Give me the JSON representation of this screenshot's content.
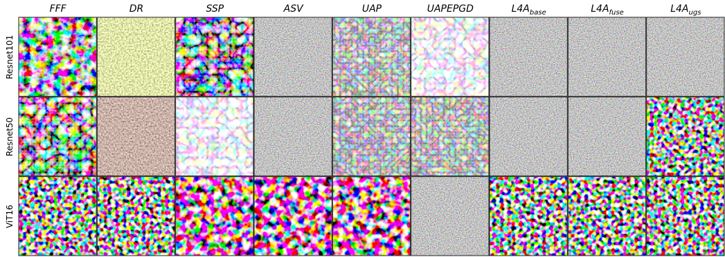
{
  "columns": [
    {
      "label": "FFF"
    },
    {
      "label": "DR"
    },
    {
      "label": "SSP"
    },
    {
      "label": "ASV"
    },
    {
      "label": "UAP"
    },
    {
      "label": "UAPEPGD"
    },
    {
      "label": "L4A",
      "subscript": "base"
    },
    {
      "label": "L4A",
      "subscript": "fuse"
    },
    {
      "label": "L4A",
      "subscript": "ugs"
    }
  ],
  "rows": [
    "Resnet101",
    "Resnet50",
    "ViT16"
  ]
}
